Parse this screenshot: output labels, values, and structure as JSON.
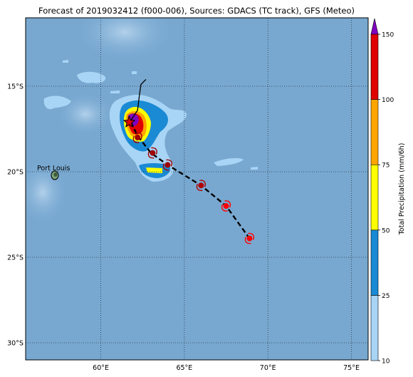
{
  "title": "Forecast of 2019032412 (f000-006), Sources: GDACS (TC track), GFS (Meteo)",
  "map": {
    "lon_range": [
      55.5,
      76
    ],
    "lat_range": [
      -31,
      -11
    ],
    "lon_ticks": [
      60,
      65,
      70,
      75
    ],
    "lat_ticks": [
      -15,
      -20,
      -25,
      -30
    ],
    "lon_tick_labels": [
      "60°E",
      "65°E",
      "70°E",
      "75°E"
    ],
    "lat_tick_labels": [
      "15°S",
      "20°S",
      "25°S",
      "30°S"
    ],
    "place_label": "Port Louis",
    "place_location": [
      57.5,
      -20.2
    ],
    "grid": true
  },
  "colorbar": {
    "label": "Total Precipitation (mm/6h)",
    "tick_labels": [
      "10",
      "25",
      "50",
      "75",
      "100",
      "150"
    ],
    "levels": [
      10,
      25,
      50,
      75,
      100,
      150
    ],
    "colors": [
      "#a8d4f5",
      "#1a8ad4",
      "#ffff00",
      "#ffa500",
      "#e00000",
      "#8000c0"
    ],
    "extend": "max"
  },
  "track": {
    "observed": [
      [
        62.7,
        -14.6
      ],
      [
        62.4,
        -14.9
      ],
      [
        62.3,
        -15.6
      ],
      [
        62.2,
        -16.4
      ],
      [
        62.0,
        -16.7
      ],
      [
        61.8,
        -17.0
      ]
    ],
    "forecast": [
      [
        61.8,
        -17.1
      ],
      [
        62.2,
        -17.9
      ],
      [
        63.0,
        -18.9
      ],
      [
        64.0,
        -19.6
      ],
      [
        66.0,
        -20.8
      ],
      [
        67.5,
        -22.0
      ],
      [
        68.9,
        -23.9
      ]
    ],
    "current_position": [
      61.7,
      -17.1
    ],
    "forecast_points": [
      {
        "lon": 62.2,
        "lat": -18.0,
        "color": "#a00000"
      },
      {
        "lon": 63.1,
        "lat": -18.9,
        "color": "#a00000"
      },
      {
        "lon": 64.0,
        "lat": -19.6,
        "color": "#a00000"
      },
      {
        "lon": 66.0,
        "lat": -20.8,
        "color": "#b00000"
      },
      {
        "lon": 67.5,
        "lat": -22.0,
        "color": "#ff0000"
      },
      {
        "lon": 68.9,
        "lat": -23.9,
        "color": "#ff0000"
      }
    ]
  }
}
